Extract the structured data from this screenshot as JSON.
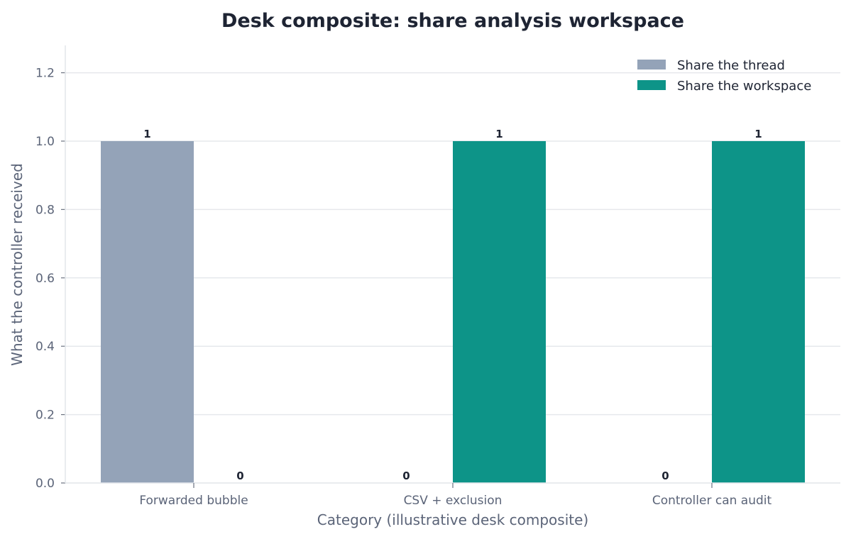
{
  "chart_data": {
    "type": "bar",
    "title": "Desk composite: share analysis workspace",
    "xlabel": "Category (illustrative desk composite)",
    "ylabel": "What the controller received",
    "categories": [
      "Forwarded bubble",
      "CSV + exclusion",
      "Controller can audit"
    ],
    "series": [
      {
        "name": "Share the thread",
        "values": [
          1,
          0,
          0
        ],
        "color": "#94a3b8"
      },
      {
        "name": "Share the workspace",
        "values": [
          0,
          1,
          1
        ],
        "color": "#0d9488"
      }
    ],
    "ylim": [
      0,
      1.28
    ],
    "yticks": [
      "0.0",
      "0.2",
      "0.4",
      "0.6",
      "0.8",
      "1.0",
      "1.2"
    ],
    "grid": true,
    "legend_position": "top-right",
    "data_labels": true
  }
}
